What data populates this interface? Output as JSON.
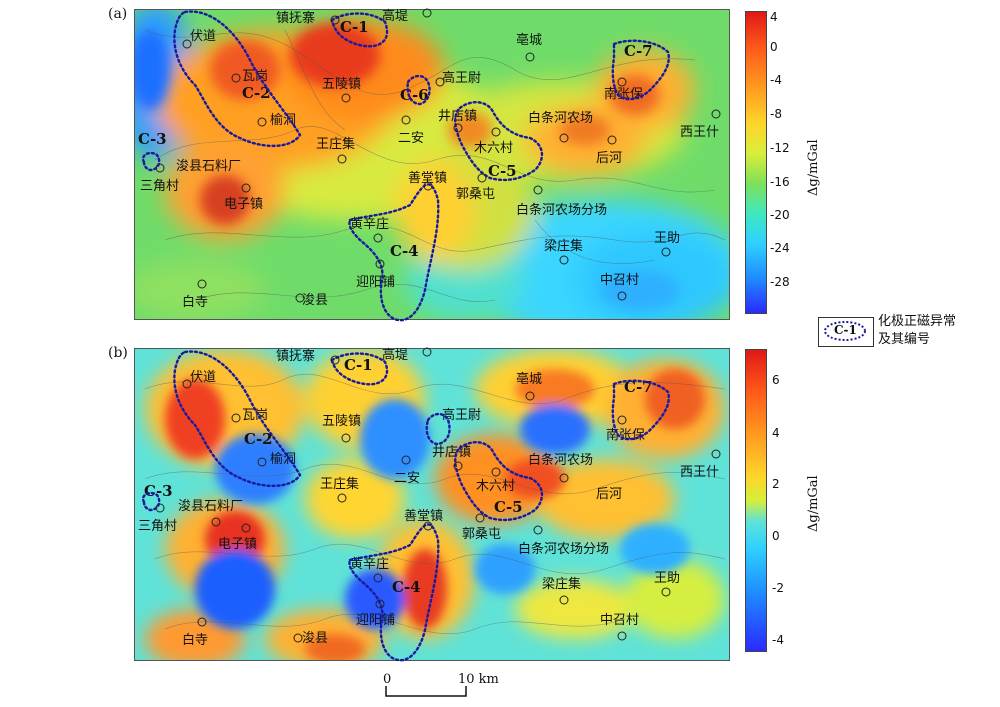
{
  "panel_a": {
    "label": "(a)",
    "unit": "Δg/mGal",
    "ticks": [
      "4",
      "0",
      "-4",
      "-8",
      "-12",
      "-16",
      "-20",
      "-24",
      "-28"
    ]
  },
  "panel_b": {
    "label": "(b)",
    "unit": "Δg/mGal",
    "ticks": [
      "6",
      "4",
      "2",
      "0",
      "-2",
      "-4"
    ]
  },
  "places": [
    "伏道",
    "镇抚寨",
    "高堤",
    "亳城",
    "瓦岗",
    "五陵镇",
    "高王尉",
    "南张保",
    "榆洞",
    "井店镇",
    "白条河农场",
    "西王什",
    "二安",
    "王庄集",
    "木六村",
    "后河",
    "浚县石料厂",
    "三角村",
    "善堂镇",
    "郭桑屯",
    "电子镇",
    "白条河农场分场",
    "黄辛庄",
    "梁庄集",
    "王助",
    "迎阳铺",
    "中召村",
    "白寺",
    "浚县"
  ],
  "anomalies": [
    "C-1",
    "C-2",
    "C-3",
    "C-4",
    "C-5",
    "C-6",
    "C-7"
  ],
  "legend": {
    "symbol": "C-1",
    "line1": "化极正磁异常",
    "line2": "及其编号"
  },
  "scale": {
    "start": "0",
    "end": "10 km"
  },
  "colors": {
    "ramp": [
      "#2a2aff",
      "#1f7fff",
      "#2fd8ff",
      "#3fe8b0",
      "#7fe05a",
      "#c8e83a",
      "#ffee30",
      "#ffb020",
      "#ff7a1a",
      "#f04020",
      "#e02020"
    ],
    "contour": "#555555",
    "anomaly_outline": "#1a1aa0"
  }
}
